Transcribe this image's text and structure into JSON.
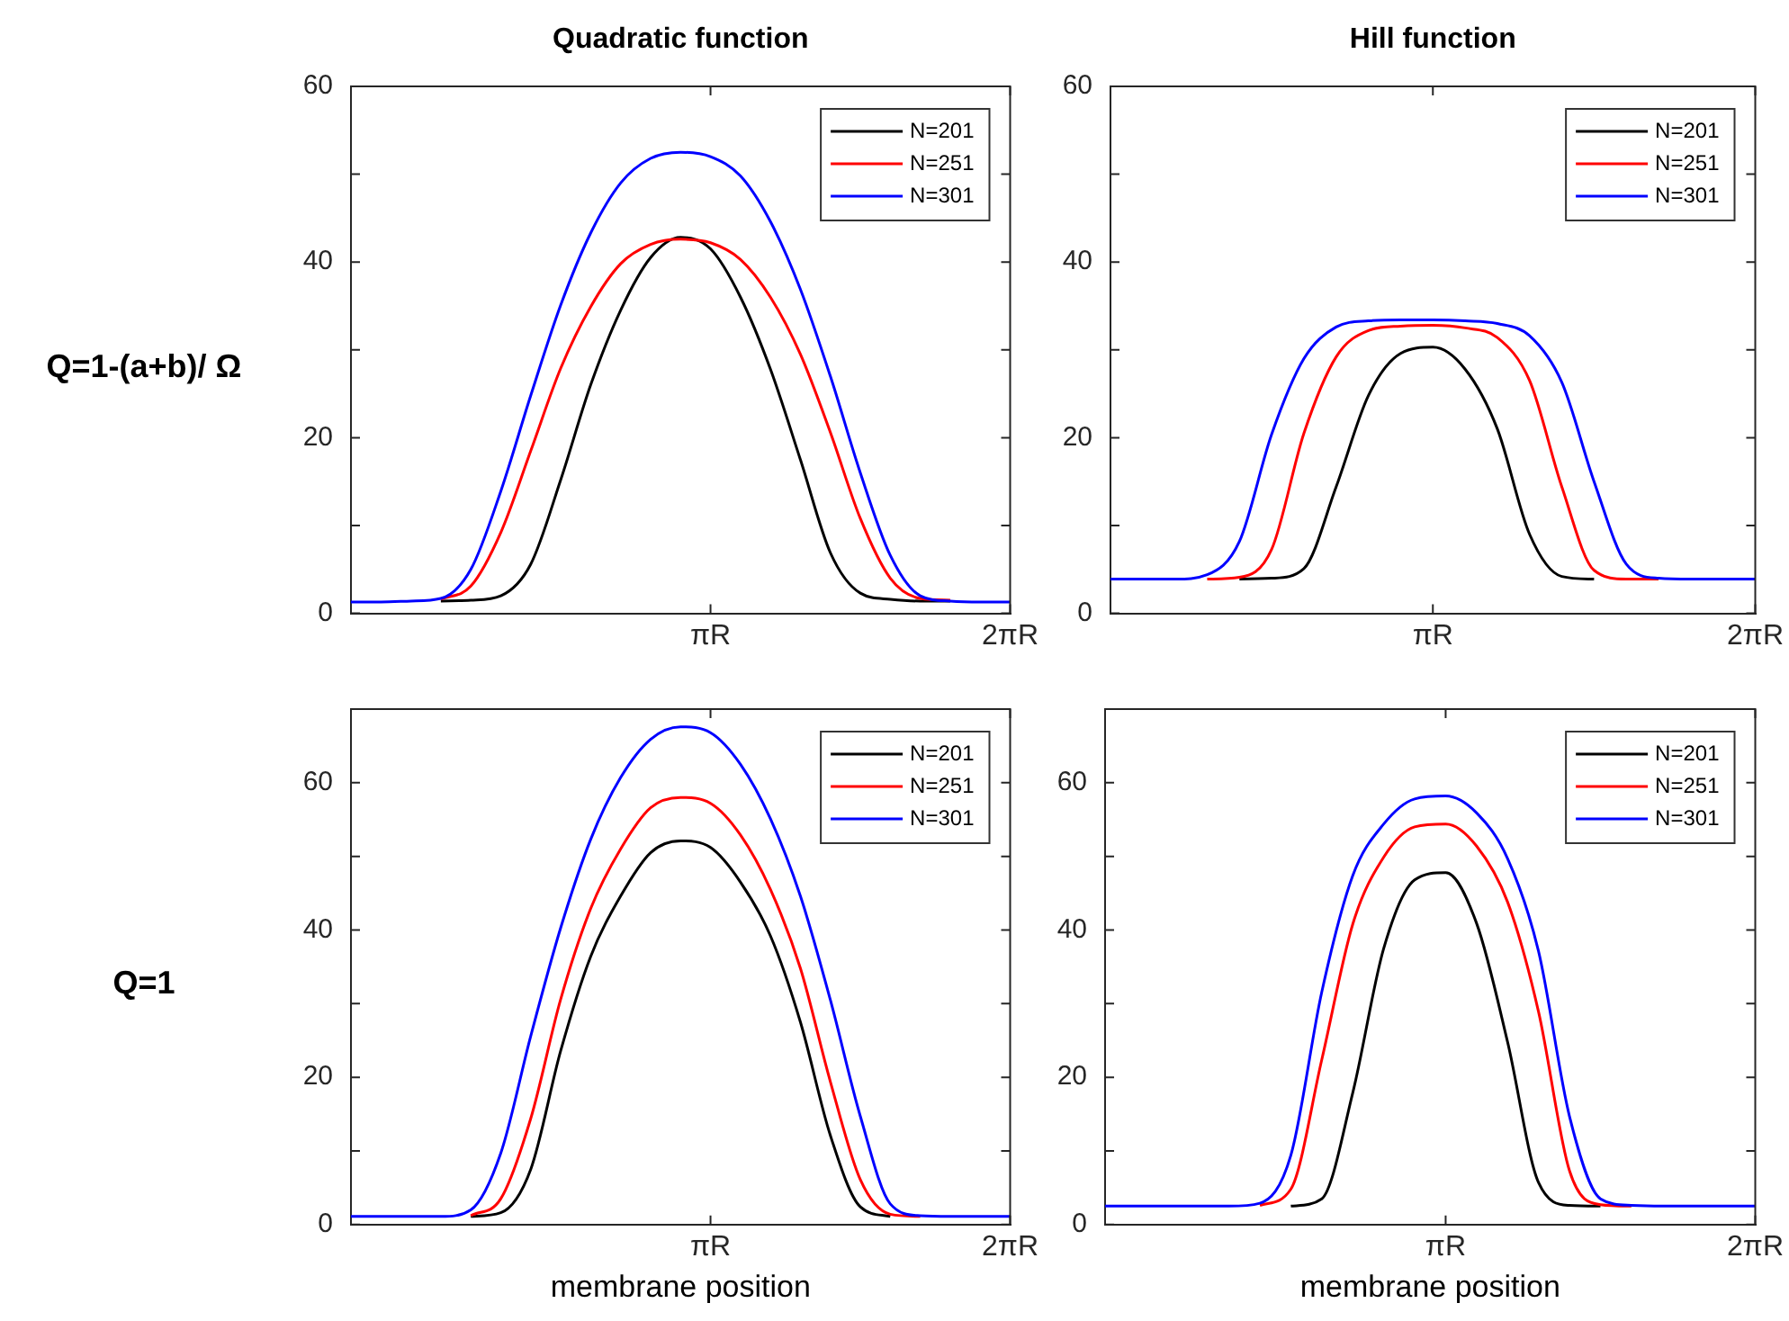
{
  "chart_data": [
    {
      "type": "line",
      "title": "Quadratic function",
      "ylabel": "Q=1-(a+b)/ Ω",
      "legend": "top right",
      "ylim": [
        0,
        60
      ],
      "yticks": [
        0,
        {
          "value": 10,
          "label": null
        },
        20,
        {
          "value": 30,
          "label": null
        },
        40,
        {
          "value": 50,
          "label": null
        },
        60
      ],
      "categories": [
        null,
        null,
        null,
        null,
        null,
        null,
        null,
        null,
        null,
        null,
        null,
        null,
        "πR",
        null,
        null,
        null,
        null,
        null,
        null,
        null,
        null,
        null,
        "2πR"
      ],
      "series": [
        {
          "name": "N=201",
          "color": "#000000",
          "values": [
            null,
            null,
            null,
            1.4,
            1.5,
            2.0,
            5.6,
            15.2,
            26.0,
            34.5,
            40.5,
            42.8,
            41.5,
            36.0,
            27.8,
            17.5,
            6.9,
            2.3,
            1.6,
            1.4,
            1.4,
            null,
            null
          ]
        },
        {
          "name": "N=251",
          "color": "#ff0000",
          "values": [
            null,
            null,
            null,
            1.6,
            3.1,
            9.2,
            18.5,
            27.9,
            34.9,
            39.8,
            42.0,
            42.6,
            42.2,
            40.3,
            36.0,
            29.5,
            20.6,
            10.8,
            4.0,
            1.7,
            1.5,
            null,
            null
          ]
        },
        {
          "name": "N=301",
          "color": "#0000ff",
          "values": [
            1.3,
            1.3,
            1.4,
            1.7,
            5.0,
            13.9,
            24.8,
            35.1,
            43.3,
            49.0,
            51.8,
            52.5,
            52.0,
            49.8,
            44.6,
            36.9,
            27.0,
            16.0,
            6.6,
            2.0,
            1.4,
            1.3,
            1.3
          ]
        }
      ]
    },
    {
      "type": "line",
      "title": "Hill function",
      "legend": "top right",
      "ylim": [
        0,
        60
      ],
      "yticks": [
        0,
        {
          "value": 10,
          "label": null
        },
        20,
        {
          "value": 30,
          "label": null
        },
        40,
        {
          "value": 50,
          "label": null
        },
        60
      ],
      "categories": [
        null,
        null,
        null,
        null,
        null,
        null,
        null,
        null,
        null,
        null,
        "πR",
        null,
        null,
        null,
        null,
        null,
        null,
        null,
        null,
        null,
        "2πR"
      ],
      "series": [
        {
          "name": "N=201",
          "color": "#000000",
          "values": [
            null,
            null,
            null,
            null,
            3.9,
            4.0,
            5.1,
            14.4,
            24.8,
            29.6,
            30.3,
            27.8,
            21.0,
            9.0,
            4.2,
            3.9,
            null,
            null,
            null,
            null,
            null
          ]
        },
        {
          "name": "N=251",
          "color": "#ff0000",
          "values": [
            null,
            null,
            null,
            3.9,
            4.1,
            7.3,
            20.5,
            29.2,
            32.2,
            32.7,
            32.8,
            32.5,
            31.4,
            26.5,
            14.4,
            4.9,
            3.9,
            3.9,
            null,
            null,
            null
          ]
        },
        {
          "name": "N=301",
          "color": "#0000ff",
          "values": [
            3.9,
            3.9,
            3.9,
            4.4,
            8.2,
            20.4,
            29.0,
            32.6,
            33.3,
            33.4,
            33.4,
            33.3,
            33.0,
            31.6,
            26.3,
            15.0,
            5.6,
            4.0,
            3.9,
            3.9,
            3.9
          ]
        }
      ]
    },
    {
      "type": "line",
      "ylabel": "Q=1",
      "xlabel": "membrane position",
      "legend": "top right",
      "ylim": [
        0,
        70
      ],
      "yticks": [
        0,
        {
          "value": 10,
          "label": null
        },
        20,
        {
          "value": 30,
          "label": null
        },
        40,
        {
          "value": 50,
          "label": null
        },
        60
      ],
      "categories": [
        null,
        null,
        null,
        null,
        null,
        null,
        null,
        null,
        null,
        null,
        null,
        null,
        "πR",
        null,
        null,
        null,
        null,
        null,
        null,
        null,
        null,
        null,
        "2πR"
      ],
      "series": [
        {
          "name": "N=201",
          "color": "#000000",
          "values": [
            null,
            null,
            null,
            null,
            1.1,
            1.6,
            7.5,
            23.6,
            36.4,
            44.6,
            50.5,
            52.1,
            51.2,
            46.5,
            39.2,
            27.5,
            12.1,
            2.4,
            1.1,
            null,
            null,
            null,
            null
          ]
        },
        {
          "name": "N=251",
          "color": "#ff0000",
          "values": [
            null,
            null,
            null,
            null,
            1.2,
            3.5,
            14.4,
            30.6,
            42.9,
            51.0,
            56.6,
            58,
            57.2,
            52.9,
            45.5,
            34.8,
            19.4,
            6.1,
            1.4,
            1.1,
            null,
            null,
            null
          ]
        },
        {
          "name": "N=301",
          "color": "#0000ff",
          "values": [
            1.1,
            1.1,
            1.1,
            1.1,
            2.0,
            9.7,
            25.6,
            40.3,
            52.3,
            60.7,
            65.9,
            67.6,
            66.8,
            62.5,
            55.1,
            44.6,
            30.5,
            14.7,
            2.8,
            1.2,
            1.1,
            1.1,
            1.1
          ]
        }
      ]
    },
    {
      "type": "line",
      "xlabel": "membrane position",
      "legend": "top right",
      "ylim": [
        0,
        70
      ],
      "yticks": [
        0,
        {
          "value": 10,
          "label": null
        },
        20,
        {
          "value": 30,
          "label": null
        },
        40,
        {
          "value": 50,
          "label": null
        },
        60
      ],
      "categories": [
        null,
        null,
        null,
        null,
        null,
        null,
        null,
        null,
        null,
        null,
        null,
        "πR",
        null,
        null,
        null,
        null,
        null,
        null,
        null,
        null,
        null,
        "2πR"
      ],
      "series": [
        {
          "name": "N=201",
          "color": "#000000",
          "values": [
            null,
            null,
            null,
            null,
            null,
            null,
            2.5,
            3.5,
            17.9,
            37.5,
            46.8,
            47.8,
            40.9,
            24.8,
            5.7,
            2.6,
            2.5,
            null,
            null,
            null,
            null,
            null
          ]
        },
        {
          "name": "N=251",
          "color": "#ff0000",
          "values": [
            null,
            null,
            null,
            null,
            null,
            2.6,
            4.8,
            22.4,
            40.8,
            49.9,
            54.0,
            54.4,
            51.4,
            43.8,
            28.9,
            7.3,
            2.7,
            2.5,
            null,
            null,
            null,
            null
          ]
        },
        {
          "name": "N=301",
          "color": "#0000ff",
          "values": [
            2.5,
            2.5,
            2.5,
            2.5,
            2.5,
            2.9,
            9.4,
            31.6,
            47.4,
            54.4,
            57.8,
            58.2,
            55.9,
            49.7,
            37.1,
            14.7,
            3.5,
            2.6,
            2.5,
            2.5,
            2.5,
            2.5
          ]
        }
      ]
    }
  ]
}
